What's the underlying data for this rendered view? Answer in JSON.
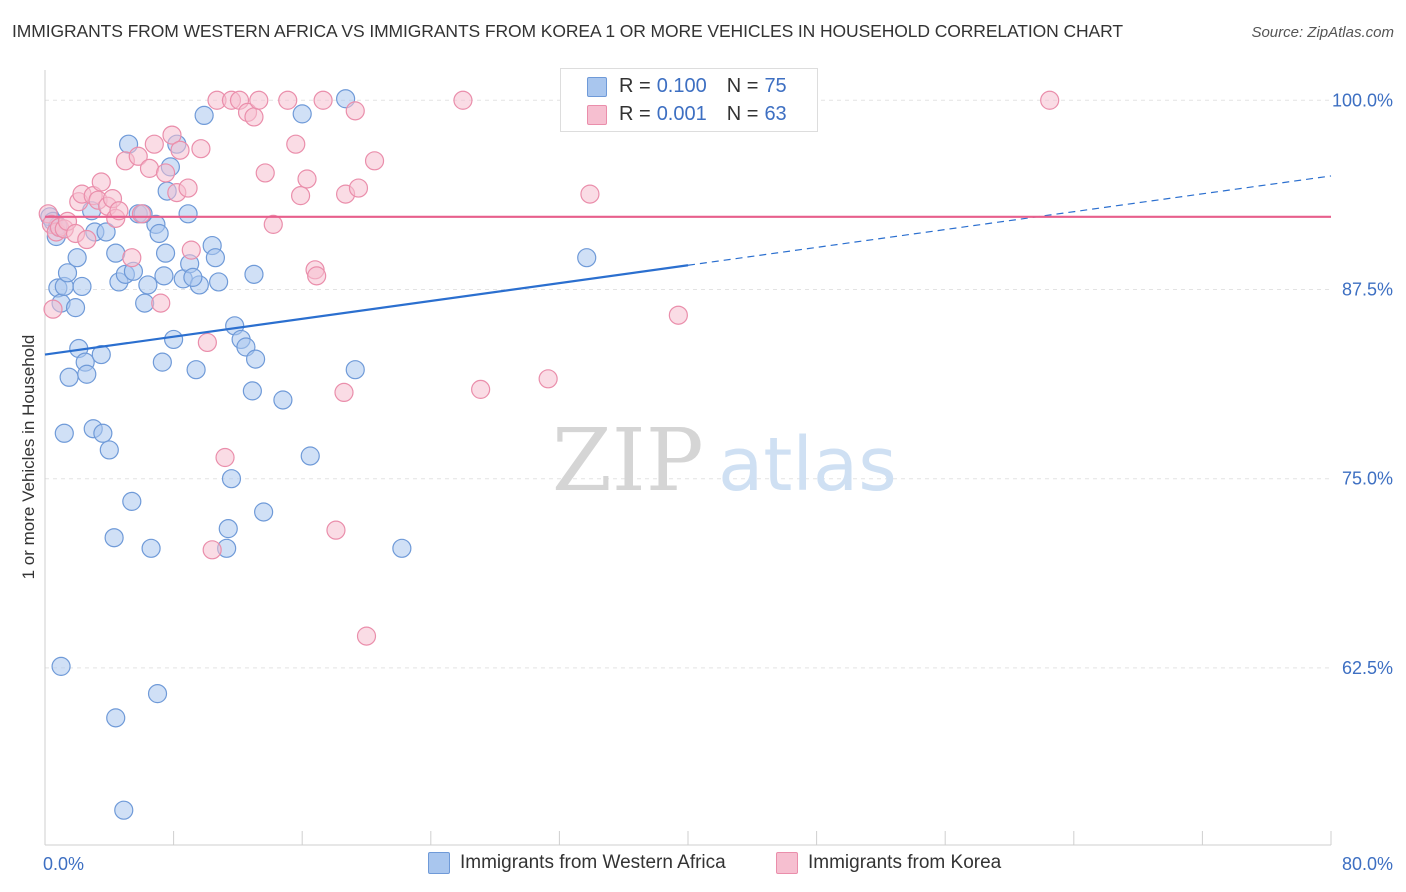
{
  "header": {
    "title": "IMMIGRANTS FROM WESTERN AFRICA VS IMMIGRANTS FROM KOREA 1 OR MORE VEHICLES IN HOUSEHOLD CORRELATION CHART",
    "source": "Source: ZipAtlas.com"
  },
  "legend": {
    "series1": {
      "r_label": "R =",
      "r_value": "0.100",
      "n_label": "N =",
      "n_value": "75"
    },
    "series2": {
      "r_label": "R =",
      "r_value": "0.001",
      "n_label": "N =",
      "n_value": "63"
    }
  },
  "watermark": {
    "zip": "ZIP",
    "atlas": "atlas"
  },
  "colors": {
    "blue_fill": "#a9c6ee",
    "blue_stroke": "#6f9ad8",
    "blue_line": "#2b6fcf",
    "pink_fill": "#f6bfd0",
    "pink_stroke": "#ea8eab",
    "pink_line": "#e75f8c",
    "tick_text": "#3d6fc2",
    "grid": "#e3e3e3"
  },
  "chart_data": {
    "type": "scatter",
    "title": "IMMIGRANTS FROM WESTERN AFRICA VS IMMIGRANTS FROM KOREA 1 OR MORE VEHICLES IN HOUSEHOLD CORRELATION CHART",
    "xlabel": "",
    "ylabel": "1 or more Vehicles in Household",
    "xlim": [
      0,
      80
    ],
    "ylim": [
      50.8,
      102
    ],
    "x_tick_labels": [
      {
        "value": 0,
        "label": "0.0%"
      },
      {
        "value": 80,
        "label": "80.0%"
      }
    ],
    "y_tick_labels": [
      {
        "value": 100,
        "label": "100.0%"
      },
      {
        "value": 87.5,
        "label": "87.5%"
      },
      {
        "value": 75,
        "label": "75.0%"
      },
      {
        "value": 62.5,
        "label": "62.5%"
      }
    ],
    "grid": true,
    "series": [
      {
        "name": "Immigrants from Western Africa",
        "color": "blue",
        "points": [
          [
            0.3,
            92.3
          ],
          [
            0.5,
            92.0
          ],
          [
            0.7,
            91.0
          ],
          [
            0.8,
            87.6
          ],
          [
            1.0,
            86.6
          ],
          [
            1.2,
            87.7
          ],
          [
            1.4,
            88.6
          ],
          [
            1.5,
            81.7
          ],
          [
            1.2,
            78.0
          ],
          [
            1.0,
            62.6
          ],
          [
            1.9,
            86.3
          ],
          [
            2.0,
            89.6
          ],
          [
            2.1,
            83.6
          ],
          [
            2.3,
            87.7
          ],
          [
            2.5,
            82.7
          ],
          [
            2.6,
            81.9
          ],
          [
            3.0,
            78.3
          ],
          [
            3.1,
            91.3
          ],
          [
            3.5,
            83.2
          ],
          [
            3.6,
            78.0
          ],
          [
            3.8,
            91.3
          ],
          [
            4.0,
            76.9
          ],
          [
            4.3,
            71.1
          ],
          [
            4.4,
            89.9
          ],
          [
            4.4,
            59.2
          ],
          [
            4.6,
            88.0
          ],
          [
            5.0,
            88.5
          ],
          [
            5.2,
            97.1
          ],
          [
            5.4,
            73.5
          ],
          [
            5.5,
            88.7
          ],
          [
            5.8,
            92.5
          ],
          [
            6.2,
            86.6
          ],
          [
            6.4,
            87.8
          ],
          [
            6.6,
            70.4
          ],
          [
            6.9,
            91.8
          ],
          [
            7.0,
            60.8
          ],
          [
            7.1,
            91.2
          ],
          [
            7.3,
            82.7
          ],
          [
            7.5,
            89.9
          ],
          [
            7.6,
            94.0
          ],
          [
            7.8,
            95.6
          ],
          [
            8.0,
            84.2
          ],
          [
            8.2,
            97.1
          ],
          [
            8.6,
            88.2
          ],
          [
            8.9,
            92.5
          ],
          [
            9.0,
            89.2
          ],
          [
            9.4,
            82.2
          ],
          [
            9.6,
            87.8
          ],
          [
            9.9,
            99.0
          ],
          [
            10.4,
            90.4
          ],
          [
            10.6,
            89.6
          ],
          [
            11.3,
            70.4
          ],
          [
            11.4,
            71.7
          ],
          [
            11.6,
            75.0
          ],
          [
            11.8,
            85.1
          ],
          [
            12.2,
            84.2
          ],
          [
            12.5,
            83.7
          ],
          [
            12.9,
            80.8
          ],
          [
            13.1,
            82.9
          ],
          [
            13.6,
            72.8
          ],
          [
            14.8,
            80.2
          ],
          [
            16.0,
            99.1
          ],
          [
            16.5,
            76.5
          ],
          [
            18.7,
            100.1
          ],
          [
            19.3,
            82.2
          ],
          [
            22.2,
            70.4
          ],
          [
            33.7,
            89.6
          ],
          [
            4.9,
            53.1
          ],
          [
            0.8,
            91.7
          ],
          [
            2.9,
            92.7
          ],
          [
            6.1,
            92.5
          ],
          [
            7.4,
            88.4
          ],
          [
            9.2,
            88.3
          ],
          [
            10.8,
            88.0
          ],
          [
            13.0,
            88.5
          ]
        ],
        "trend": {
          "x_start": 0,
          "y_start": 83.2,
          "x_solid_end": 40,
          "y_solid_end": 89.1,
          "x_end": 80,
          "y_end": 95.0
        }
      },
      {
        "name": "Immigrants from Korea",
        "color": "pink",
        "points": [
          [
            0.2,
            92.5
          ],
          [
            0.4,
            91.8
          ],
          [
            0.5,
            86.2
          ],
          [
            0.7,
            91.3
          ],
          [
            0.9,
            91.6
          ],
          [
            1.2,
            91.5
          ],
          [
            1.4,
            92.0
          ],
          [
            1.9,
            91.2
          ],
          [
            2.1,
            93.3
          ],
          [
            2.3,
            93.8
          ],
          [
            2.6,
            90.8
          ],
          [
            3.0,
            93.7
          ],
          [
            3.3,
            93.4
          ],
          [
            3.5,
            94.6
          ],
          [
            3.9,
            93.0
          ],
          [
            4.2,
            93.5
          ],
          [
            4.4,
            92.2
          ],
          [
            4.6,
            92.7
          ],
          [
            5.0,
            96.0
          ],
          [
            5.4,
            89.6
          ],
          [
            5.8,
            96.3
          ],
          [
            6.0,
            92.5
          ],
          [
            6.5,
            95.5
          ],
          [
            6.8,
            97.1
          ],
          [
            7.2,
            86.6
          ],
          [
            7.5,
            95.2
          ],
          [
            7.9,
            97.7
          ],
          [
            8.2,
            93.9
          ],
          [
            8.4,
            96.7
          ],
          [
            8.9,
            94.2
          ],
          [
            9.1,
            90.1
          ],
          [
            9.7,
            96.8
          ],
          [
            10.1,
            84.0
          ],
          [
            10.4,
            70.3
          ],
          [
            10.7,
            100.0
          ],
          [
            11.2,
            76.4
          ],
          [
            11.6,
            100.0
          ],
          [
            12.1,
            100.0
          ],
          [
            12.6,
            99.2
          ],
          [
            13.0,
            98.9
          ],
          [
            13.3,
            100.0
          ],
          [
            13.7,
            95.2
          ],
          [
            14.2,
            91.8
          ],
          [
            15.1,
            100.0
          ],
          [
            15.6,
            97.1
          ],
          [
            15.9,
            93.7
          ],
          [
            16.3,
            94.8
          ],
          [
            16.8,
            88.8
          ],
          [
            16.9,
            88.4
          ],
          [
            17.3,
            100.0
          ],
          [
            18.1,
            71.6
          ],
          [
            18.6,
            80.7
          ],
          [
            18.7,
            93.8
          ],
          [
            19.3,
            99.3
          ],
          [
            19.5,
            94.2
          ],
          [
            20.0,
            64.6
          ],
          [
            20.5,
            96.0
          ],
          [
            26.0,
            100.0
          ],
          [
            27.1,
            80.9
          ],
          [
            31.3,
            81.6
          ],
          [
            33.9,
            93.8
          ],
          [
            39.4,
            85.8
          ],
          [
            62.5,
            100.0
          ]
        ],
        "trend": {
          "x_start": 0,
          "y_start": 92.3,
          "x_end": 80,
          "y_end": 92.3
        }
      }
    ]
  },
  "bottom_legend": {
    "series1_label": "Immigrants from Western Africa",
    "series2_label": "Immigrants from Korea"
  }
}
